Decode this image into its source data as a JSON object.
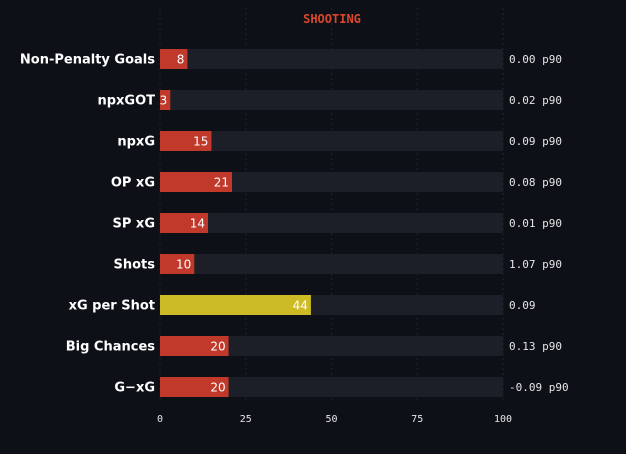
{
  "colors": {
    "background": "#0d1117",
    "track": "#1c1f28",
    "bar": "#c0392b",
    "highlight": "#cdbb25",
    "title": "#d9472b",
    "grid": "#1f232b"
  },
  "chart_data": {
    "type": "bar",
    "orientation": "horizontal",
    "title": "SHOOTING",
    "xlim": [
      0,
      100
    ],
    "xticks": [
      "0",
      "25",
      "50",
      "75",
      "100"
    ],
    "grid": "vertical dashed",
    "categories": [
      "Non-Penalty Goals",
      "npxGOT",
      "npxG",
      "OP xG",
      "SP xG",
      "Shots",
      "xG per Shot",
      "Big Chances",
      "G−xG"
    ],
    "values": [
      8,
      3,
      15,
      21,
      14,
      10,
      44,
      20,
      20
    ],
    "value_labels": [
      "8",
      "3",
      "15",
      "21",
      "14",
      "10",
      "44",
      "20",
      "20"
    ],
    "per90_labels": [
      "0.00 p90",
      "0.02 p90",
      "0.09 p90",
      "0.08 p90",
      "0.01 p90",
      "1.07 p90",
      "0.09",
      "0.13 p90",
      "-0.09 p90"
    ],
    "highlight_index": 6
  }
}
